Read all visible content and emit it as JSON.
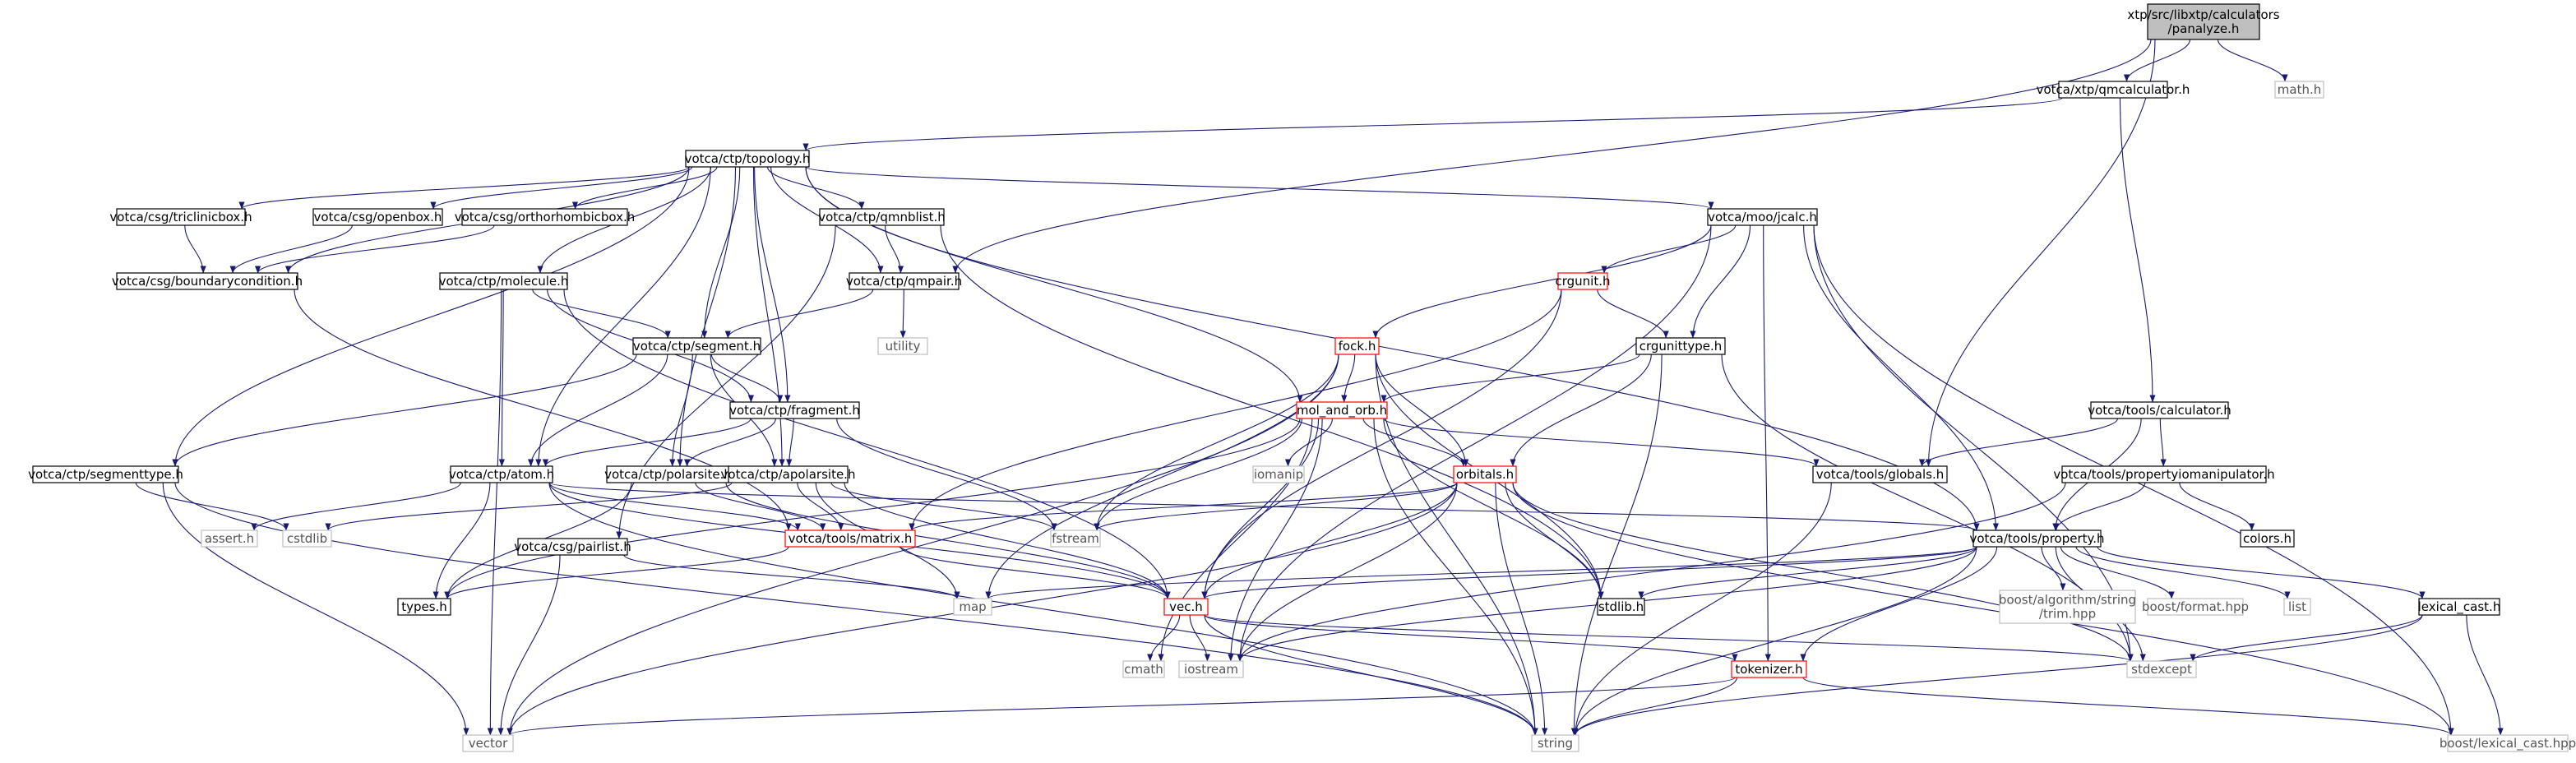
{
  "graph": {
    "colors": {
      "edge": "#191970",
      "border_default": "#000000",
      "border_missing": "#bfbfbf",
      "border_truncated": "#ff0000",
      "root_fill": "#bfbfbf",
      "text_missing": "#555555"
    },
    "nodes": [
      {
        "id": "root",
        "label": "xtp/src/libxtp/calculators\n/panalyze.h",
        "style": "root"
      },
      {
        "id": "qmcalc",
        "label": "votca/xtp/qmcalculator.h",
        "style": "default"
      },
      {
        "id": "mathh",
        "label": "math.h",
        "style": "missing"
      },
      {
        "id": "topology",
        "label": "votca/ctp/topology.h",
        "style": "default"
      },
      {
        "id": "triclinic",
        "label": "votca/csg/triclinicbox.h",
        "style": "default"
      },
      {
        "id": "openbox",
        "label": "votca/csg/openbox.h",
        "style": "default"
      },
      {
        "id": "orthorhombic",
        "label": "votca/csg/orthorhombicbox.h",
        "style": "default"
      },
      {
        "id": "qmnblist",
        "label": "votca/ctp/qmnblist.h",
        "style": "default"
      },
      {
        "id": "jcalc",
        "label": "votca/moo/jcalc.h",
        "style": "default"
      },
      {
        "id": "boundary",
        "label": "votca/csg/boundarycondition.h",
        "style": "default"
      },
      {
        "id": "molecule",
        "label": "votca/ctp/molecule.h",
        "style": "default"
      },
      {
        "id": "qmpair",
        "label": "votca/ctp/qmpair.h",
        "style": "default"
      },
      {
        "id": "utility",
        "label": "utility",
        "style": "missing"
      },
      {
        "id": "crgunit",
        "label": "crgunit.h",
        "style": "truncated"
      },
      {
        "id": "segment",
        "label": "votca/ctp/segment.h",
        "style": "default"
      },
      {
        "id": "fock",
        "label": "fock.h",
        "style": "truncated"
      },
      {
        "id": "crgunittype",
        "label": "crgunittype.h",
        "style": "default"
      },
      {
        "id": "fragment",
        "label": "votca/ctp/fragment.h",
        "style": "default"
      },
      {
        "id": "molandorb",
        "label": "mol_and_orb.h",
        "style": "truncated"
      },
      {
        "id": "calculator",
        "label": "votca/tools/calculator.h",
        "style": "default"
      },
      {
        "id": "segmenttype",
        "label": "votca/ctp/segmenttype.h",
        "style": "default"
      },
      {
        "id": "atom",
        "label": "votca/ctp/atom.h",
        "style": "default"
      },
      {
        "id": "polarsite",
        "label": "votca/ctp/polarsite.h",
        "style": "default"
      },
      {
        "id": "apolarsite",
        "label": "votca/ctp/apolarsite.h",
        "style": "default"
      },
      {
        "id": "iomanip",
        "label": "iomanip",
        "style": "missing"
      },
      {
        "id": "orbitals",
        "label": "orbitals.h",
        "style": "truncated"
      },
      {
        "id": "globals",
        "label": "votca/tools/globals.h",
        "style": "default"
      },
      {
        "id": "propio",
        "label": "votca/tools/propertyiomanipulator.h",
        "style": "default"
      },
      {
        "id": "asserth",
        "label": "assert.h",
        "style": "missing"
      },
      {
        "id": "cstdlib",
        "label": "cstdlib",
        "style": "missing"
      },
      {
        "id": "matrix",
        "label": "votca/tools/matrix.h",
        "style": "truncated"
      },
      {
        "id": "fstream",
        "label": "fstream",
        "style": "missing"
      },
      {
        "id": "property",
        "label": "votca/tools/property.h",
        "style": "default"
      },
      {
        "id": "colors",
        "label": "colors.h",
        "style": "default"
      },
      {
        "id": "pairlist",
        "label": "votca/csg/pairlist.h",
        "style": "default"
      },
      {
        "id": "trim",
        "label": "boost/algorithm/string\n/trim.hpp",
        "style": "missing"
      },
      {
        "id": "boostformat",
        "label": "boost/format.hpp",
        "style": "missing"
      },
      {
        "id": "list",
        "label": "list",
        "style": "missing"
      },
      {
        "id": "lexicalcast",
        "label": "lexical_cast.h",
        "style": "default"
      },
      {
        "id": "types",
        "label": "types.h",
        "style": "default"
      },
      {
        "id": "map",
        "label": "map",
        "style": "missing"
      },
      {
        "id": "vec",
        "label": "vec.h",
        "style": "truncated"
      },
      {
        "id": "stdlib",
        "label": "stdlib.h",
        "style": "default"
      },
      {
        "id": "cmath",
        "label": "cmath",
        "style": "missing"
      },
      {
        "id": "iostream",
        "label": "iostream",
        "style": "missing"
      },
      {
        "id": "tokenizer",
        "label": "tokenizer.h",
        "style": "truncated"
      },
      {
        "id": "stdexcept",
        "label": "stdexcept",
        "style": "missing"
      },
      {
        "id": "vector",
        "label": "vector",
        "style": "missing"
      },
      {
        "id": "string",
        "label": "string",
        "style": "missing"
      },
      {
        "id": "boostlexical",
        "label": "boost/lexical_cast.hpp",
        "style": "missing"
      }
    ],
    "edges": [
      [
        "root",
        "qmcalc"
      ],
      [
        "root",
        "mathh"
      ],
      [
        "root",
        "qmpair"
      ],
      [
        "root",
        "globals"
      ],
      [
        "qmcalc",
        "topology"
      ],
      [
        "qmcalc",
        "calculator"
      ],
      [
        "topology",
        "triclinic"
      ],
      [
        "topology",
        "openbox"
      ],
      [
        "topology",
        "orthorhombic"
      ],
      [
        "topology",
        "qmnblist"
      ],
      [
        "topology",
        "jcalc"
      ],
      [
        "topology",
        "boundary"
      ],
      [
        "topology",
        "molecule"
      ],
      [
        "topology",
        "qmpair"
      ],
      [
        "topology",
        "segment"
      ],
      [
        "topology",
        "fragment"
      ],
      [
        "topology",
        "segmenttype"
      ],
      [
        "topology",
        "atom"
      ],
      [
        "topology",
        "polarsite"
      ],
      [
        "topology",
        "apolarsite"
      ],
      [
        "topology",
        "molandorb"
      ],
      [
        "topology",
        "property"
      ],
      [
        "triclinic",
        "boundary"
      ],
      [
        "openbox",
        "boundary"
      ],
      [
        "orthorhombic",
        "boundary"
      ],
      [
        "boundary",
        "matrix"
      ],
      [
        "qmnblist",
        "qmpair"
      ],
      [
        "qmnblist",
        "pairlist"
      ],
      [
        "qmnblist",
        "stdlib"
      ],
      [
        "qmpair",
        "utility"
      ],
      [
        "qmpair",
        "segment"
      ],
      [
        "molecule",
        "segment"
      ],
      [
        "molecule",
        "fragment"
      ],
      [
        "molecule",
        "atom"
      ],
      [
        "molecule",
        "vector"
      ],
      [
        "molecule",
        "vec"
      ],
      [
        "segment",
        "segmenttype"
      ],
      [
        "segment",
        "fragment"
      ],
      [
        "segment",
        "atom"
      ],
      [
        "segment",
        "polarsite"
      ],
      [
        "segment",
        "apolarsite"
      ],
      [
        "fragment",
        "atom"
      ],
      [
        "fragment",
        "polarsite"
      ],
      [
        "fragment",
        "apolarsite"
      ],
      [
        "fragment",
        "fstream"
      ],
      [
        "segmenttype",
        "cstdlib"
      ],
      [
        "segmenttype",
        "vector"
      ],
      [
        "segmenttype",
        "string"
      ],
      [
        "atom",
        "asserth"
      ],
      [
        "atom",
        "types"
      ],
      [
        "atom",
        "matrix"
      ],
      [
        "atom",
        "vec"
      ],
      [
        "atom",
        "string"
      ],
      [
        "atom",
        "property"
      ],
      [
        "polarsite",
        "types"
      ],
      [
        "polarsite",
        "matrix"
      ],
      [
        "polarsite",
        "vec"
      ],
      [
        "apolarsite",
        "cstdlib"
      ],
      [
        "apolarsite",
        "matrix"
      ],
      [
        "apolarsite",
        "vec"
      ],
      [
        "apolarsite",
        "map"
      ],
      [
        "apolarsite",
        "fstream"
      ],
      [
        "pairlist",
        "vector"
      ],
      [
        "pairlist",
        "map"
      ],
      [
        "jcalc",
        "crgunit"
      ],
      [
        "jcalc",
        "crgunittype"
      ],
      [
        "jcalc",
        "fock"
      ],
      [
        "jcalc",
        "property"
      ],
      [
        "jcalc",
        "tokenizer"
      ],
      [
        "jcalc",
        "stdexcept"
      ],
      [
        "jcalc",
        "boostlexical"
      ],
      [
        "jcalc",
        "iostream"
      ],
      [
        "crgunit",
        "crgunittype"
      ],
      [
        "crgunit",
        "matrix"
      ],
      [
        "crgunit",
        "vec"
      ],
      [
        "crgunittype",
        "molandorb"
      ],
      [
        "crgunittype",
        "orbitals"
      ],
      [
        "crgunittype",
        "stdexcept"
      ],
      [
        "crgunittype",
        "string"
      ],
      [
        "fock",
        "molandorb"
      ],
      [
        "fock",
        "orbitals"
      ],
      [
        "fock",
        "fstream"
      ],
      [
        "fock",
        "stdlib"
      ],
      [
        "fock",
        "string"
      ],
      [
        "fock",
        "map"
      ],
      [
        "fock",
        "vector"
      ],
      [
        "molandorb",
        "orbitals"
      ],
      [
        "molandorb",
        "iomanip"
      ],
      [
        "molandorb",
        "fstream"
      ],
      [
        "molandorb",
        "globals"
      ],
      [
        "molandorb",
        "vec"
      ],
      [
        "molandorb",
        "types"
      ],
      [
        "molandorb",
        "cmath"
      ],
      [
        "molandorb",
        "stdlib"
      ],
      [
        "molandorb",
        "iostream"
      ],
      [
        "molandorb",
        "string"
      ],
      [
        "orbitals",
        "matrix"
      ],
      [
        "orbitals",
        "fstream"
      ],
      [
        "orbitals",
        "stdlib"
      ],
      [
        "orbitals",
        "vec"
      ],
      [
        "orbitals",
        "iostream"
      ],
      [
        "orbitals",
        "string"
      ],
      [
        "orbitals",
        "vector"
      ],
      [
        "orbitals",
        "stdexcept"
      ],
      [
        "orbitals",
        "boostlexical"
      ],
      [
        "calculator",
        "globals"
      ],
      [
        "calculator",
        "propio"
      ],
      [
        "calculator",
        "property"
      ],
      [
        "globals",
        "string"
      ],
      [
        "propio",
        "property"
      ],
      [
        "propio",
        "colors"
      ],
      [
        "propio",
        "iostream"
      ],
      [
        "property",
        "map"
      ],
      [
        "property",
        "vec"
      ],
      [
        "property",
        "trim"
      ],
      [
        "property",
        "boostformat"
      ],
      [
        "property",
        "list"
      ],
      [
        "property",
        "lexicalcast"
      ],
      [
        "property",
        "stdlib"
      ],
      [
        "property",
        "tokenizer"
      ],
      [
        "property",
        "iostream"
      ],
      [
        "property",
        "stdexcept"
      ],
      [
        "property",
        "string"
      ],
      [
        "lexicalcast",
        "stdexcept"
      ],
      [
        "lexicalcast",
        "boostlexical"
      ],
      [
        "lexicalcast",
        "string"
      ],
      [
        "matrix",
        "types"
      ],
      [
        "matrix",
        "vec"
      ],
      [
        "vec",
        "cmath"
      ],
      [
        "vec",
        "iostream"
      ],
      [
        "vec",
        "tokenizer"
      ],
      [
        "vec",
        "string"
      ],
      [
        "vec",
        "stdexcept"
      ],
      [
        "tokenizer",
        "vector"
      ],
      [
        "tokenizer",
        "string"
      ],
      [
        "tokenizer",
        "boostlexical"
      ]
    ]
  }
}
